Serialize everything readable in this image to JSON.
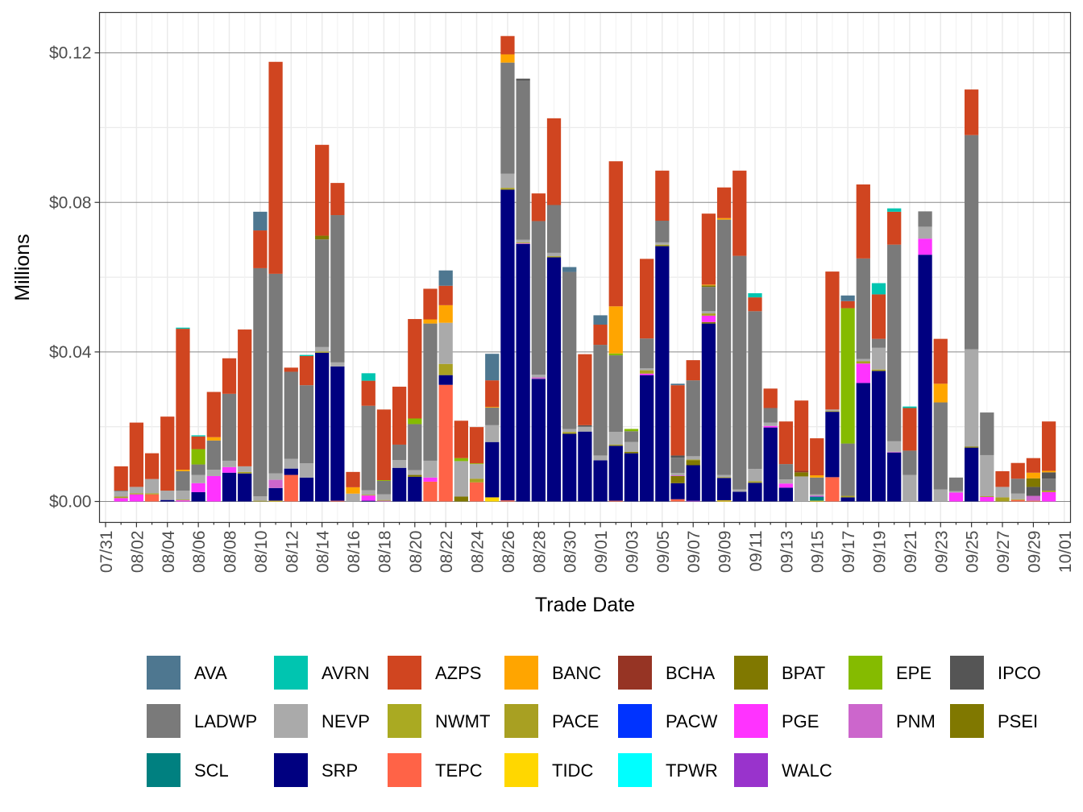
{
  "chart_data": {
    "type": "bar",
    "stacked": true,
    "xlabel": "Trade Date",
    "ylabel": "Millions",
    "y_ticks": [
      "$0.00",
      "$0.04",
      "$0.08",
      "$0.12"
    ],
    "y_tick_values": [
      0,
      0.04,
      0.08,
      0.12
    ],
    "ylim": [
      -0.0056,
      0.1308
    ],
    "x_ticks": [
      "07/31",
      "08/02",
      "08/04",
      "08/06",
      "08/08",
      "08/10",
      "08/12",
      "08/14",
      "08/16",
      "08/18",
      "08/20",
      "08/22",
      "08/24",
      "08/26",
      "08/28",
      "08/30",
      "09/01",
      "09/03",
      "09/05",
      "09/07",
      "09/09",
      "09/11",
      "09/13",
      "09/15",
      "09/17",
      "09/19",
      "09/21",
      "09/23",
      "09/25",
      "09/27",
      "09/29",
      "10/01"
    ],
    "x_range": [
      "07/31",
      "10/01"
    ],
    "grid": true,
    "legend_position": "bottom",
    "series": [
      {
        "name": "AVA",
        "color": "#4E7790"
      },
      {
        "name": "AVRN",
        "color": "#00C5B0"
      },
      {
        "name": "AZPS",
        "color": "#D04520"
      },
      {
        "name": "BANC",
        "color": "#FFA500"
      },
      {
        "name": "BCHA",
        "color": "#963424"
      },
      {
        "name": "BPAT",
        "color": "#807800"
      },
      {
        "name": "EPE",
        "color": "#85BB00"
      },
      {
        "name": "IPCO",
        "color": "#555555"
      },
      {
        "name": "LADWP",
        "color": "#7A7A7A"
      },
      {
        "name": "NEVP",
        "color": "#AAAAAA"
      },
      {
        "name": "NWMT",
        "color": "#AAAA22"
      },
      {
        "name": "PACE",
        "color": "#A8A022"
      },
      {
        "name": "PACW",
        "color": "#0033FF"
      },
      {
        "name": "PGE",
        "color": "#FF33FF"
      },
      {
        "name": "PNM",
        "color": "#CC66CC"
      },
      {
        "name": "PSEI",
        "color": "#807800"
      },
      {
        "name": "SCL",
        "color": "#008080"
      },
      {
        "name": "SRP",
        "color": "#000080"
      },
      {
        "name": "TEPC",
        "color": "#FF6347"
      },
      {
        "name": "TIDC",
        "color": "#FFD700"
      },
      {
        "name": "TPWR",
        "color": "#00FFFF"
      },
      {
        "name": "WALC",
        "color": "#9933CC"
      }
    ],
    "days": [
      {
        "date": "08/01",
        "values": {
          "PGE": 0.0009,
          "PACE": 0.0004,
          "NEVP": 0.0014,
          "LADWP": 0.0002,
          "AZPS": 0.0065
        }
      },
      {
        "date": "08/02",
        "values": {
          "PGE": 0.0019,
          "PACE": 0.0003,
          "NEVP": 0.0017,
          "AZPS": 0.0172
        }
      },
      {
        "date": "08/03",
        "values": {
          "TEPC": 0.0019,
          "PACE": 0.0003,
          "NEVP": 0.0038,
          "AZPS": 0.0069
        }
      },
      {
        "date": "08/04",
        "values": {
          "SRP": 0.0004,
          "NEVP": 0.0025,
          "AZPS": 0.0198
        }
      },
      {
        "date": "08/05",
        "values": {
          "PGE": 0.0003,
          "PACE": 0.0002,
          "NEVP": 0.0024,
          "LADWP": 0.0052,
          "BANC": 0.0004,
          "AZPS": 0.0377,
          "AVRN": 0.0003
        }
      },
      {
        "date": "08/06",
        "values": {
          "SRP": 0.0025,
          "PGE": 0.0024,
          "NEVP": 0.0022,
          "LADWP": 0.0028,
          "EPE": 0.0041,
          "AZPS": 0.0034,
          "AVRN": 0.0003
        }
      },
      {
        "date": "08/07",
        "values": {
          "PGE": 0.0068,
          "NEVP": 0.0017,
          "LADWP": 0.0078,
          "BANC": 0.0009,
          "AZPS": 0.0121
        }
      },
      {
        "date": "08/08",
        "values": {
          "SRP": 0.0077,
          "PGE": 0.0015,
          "NEVP": 0.0017,
          "LADWP": 0.0179,
          "AZPS": 0.0095
        }
      },
      {
        "date": "08/09",
        "values": {
          "SRP": 0.0075,
          "PACE": 0.0004,
          "NEVP": 0.0015,
          "AZPS": 0.0366
        }
      },
      {
        "date": "08/10",
        "values": {
          "PACE": 0.0002,
          "NEVP": 0.0012,
          "LADWP": 0.061,
          "AZPS": 0.0101,
          "AVA": 0.005
        }
      },
      {
        "date": "08/11",
        "values": {
          "TIDC": 0.0002,
          "SRP": 0.0034,
          "PNM": 0.0022,
          "NEVP": 0.0017,
          "LADWP": 0.0534,
          "AZPS": 0.0567
        }
      },
      {
        "date": "08/12",
        "values": {
          "TEPC": 0.0071,
          "SRP": 0.0017,
          "NEVP": 0.0026,
          "LADWP": 0.0233,
          "AZPS": 0.0011
        }
      },
      {
        "date": "08/13",
        "values": {
          "SRP": 0.0064,
          "NEVP": 0.0038,
          "LADWP": 0.0209,
          "AZPS": 0.0078,
          "AVRN": 0.0003
        }
      },
      {
        "date": "08/14",
        "values": {
          "SRP": 0.0398,
          "PACE": 0.0003,
          "NEVP": 0.0012,
          "LADWP": 0.0288,
          "BPAT": 0.001,
          "AZPS": 0.0243
        }
      },
      {
        "date": "08/15",
        "values": {
          "TEPC": 0.0002,
          "SRP": 0.0359,
          "NEVP": 0.0011,
          "LADWP": 0.0394,
          "AZPS": 0.0086
        }
      },
      {
        "date": "08/16",
        "values": {
          "NEVP": 0.0021,
          "BANC": 0.0017,
          "AZPS": 0.0041
        }
      },
      {
        "date": "08/17",
        "values": {
          "SRP": 0.0002,
          "PGE": 0.0014,
          "PACE": 0.0002,
          "NEVP": 0.0012,
          "LADWP": 0.0226,
          "AZPS": 0.0067,
          "AVRN": 0.002
        }
      },
      {
        "date": "08/18",
        "values": {
          "PNM": 0.0002,
          "PACE": 0.0002,
          "NEVP": 0.0015,
          "LADWP": 0.0036,
          "EPE": 0.0002,
          "AZPS": 0.0189
        }
      },
      {
        "date": "08/19",
        "values": {
          "SRP": 0.009,
          "NEVP": 0.0021,
          "LADWP": 0.0041,
          "AZPS": 0.0155
        }
      },
      {
        "date": "08/20",
        "values": {
          "SRP": 0.0066,
          "PSEI": 0.0005,
          "NEVP": 0.0013,
          "LADWP": 0.0123,
          "EPE": 0.0015,
          "AZPS": 0.0266
        }
      },
      {
        "date": "08/21",
        "values": {
          "TEPC": 0.0053,
          "PGE": 0.0011,
          "NEVP": 0.0045,
          "LADWP": 0.0367,
          "BANC": 0.0011,
          "AZPS": 0.0082
        }
      },
      {
        "date": "08/22",
        "values": {
          "TEPC": 0.0312,
          "SRP": 0.0026,
          "PACE": 0.003,
          "NEVP": 0.011,
          "BANC": 0.0047,
          "AZPS": 0.0052,
          "AVA": 0.0041
        }
      },
      {
        "date": "08/23",
        "values": {
          "PSEI": 0.0013,
          "NEVP": 0.0095,
          "EPE": 0.0008,
          "AZPS": 0.01
        }
      },
      {
        "date": "08/24",
        "values": {
          "TEPC": 0.0051,
          "PACE": 0.001,
          "NEVP": 0.0039,
          "EPE": 0.0002,
          "AZPS": 0.0097
        }
      },
      {
        "date": "08/25",
        "values": {
          "TIDC": 0.0011,
          "SRP": 0.0148,
          "NEVP": 0.0045,
          "LADWP": 0.0047,
          "BANC": 0.0002,
          "AZPS": 0.0071,
          "AVA": 0.0071
        }
      },
      {
        "date": "08/26",
        "values": {
          "TEPC": 0.0003,
          "SRP": 0.0831,
          "PACE": 0.0005,
          "NEVP": 0.0038,
          "LADWP": 0.0297,
          "BANC": 0.0022,
          "AZPS": 0.0049
        }
      },
      {
        "date": "08/27",
        "values": {
          "SRP": 0.0689,
          "PNM": 0.0002,
          "PACE": 0.0002,
          "NEVP": 0.0007,
          "LADWP": 0.0426,
          "IPCO": 0.0005
        }
      },
      {
        "date": "08/28",
        "values": {
          "SRP": 0.0328,
          "PNM": 0.0004,
          "NEVP": 0.0007,
          "LADWP": 0.0411,
          "AZPS": 0.0074
        }
      },
      {
        "date": "08/29",
        "values": {
          "SRP": 0.0653,
          "PACE": 0.0003,
          "NEVP": 0.0009,
          "LADWP": 0.0128,
          "AZPS": 0.0232
        }
      },
      {
        "date": "08/30",
        "values": {
          "SRP": 0.0181,
          "PACE": 0.0005,
          "NEVP": 0.0008,
          "LADWP": 0.042,
          "AVA": 0.0013
        }
      },
      {
        "date": "08/31",
        "values": {
          "SRP": 0.0187,
          "NEVP": 0.0013,
          "IPCO": 0.0004,
          "AZPS": 0.019
        }
      },
      {
        "date": "09/01",
        "values": {
          "SRP": 0.011,
          "NEVP": 0.0013,
          "LADWP": 0.0296,
          "AZPS": 0.0054,
          "AVA": 0.0025
        }
      },
      {
        "date": "09/02",
        "values": {
          "TEPC": 0.0002,
          "SRP": 0.0147,
          "PACE": 0.0003,
          "NEVP": 0.0034,
          "LADWP": 0.0205,
          "EPE": 0.0005,
          "BANC": 0.0126,
          "AZPS": 0.0388
        }
      },
      {
        "date": "09/03",
        "values": {
          "SRP": 0.0129,
          "PSEI": 0.0004,
          "NEVP": 0.0026,
          "LADWP": 0.0029,
          "EPE": 0.0006
        }
      },
      {
        "date": "09/04",
        "values": {
          "SRP": 0.0338,
          "PGE": 0.0004,
          "PACE": 0.0009,
          "NEVP": 0.0005,
          "LADWP": 0.008,
          "AZPS": 0.0213
        }
      },
      {
        "date": "09/05",
        "values": {
          "SRP": 0.0683,
          "PACE": 0.0004,
          "NEVP": 0.0006,
          "LADWP": 0.0058,
          "AZPS": 0.0134
        }
      },
      {
        "date": "09/06",
        "values": {
          "TEPC": 0.0006,
          "SRP": 0.0043,
          "PSEI": 0.0019,
          "PNM": 0.0002,
          "NEVP": 0.0006,
          "LADWP": 0.0041,
          "IPCO": 0.0006,
          "AZPS": 0.0188,
          "AVA": 0.0004
        }
      },
      {
        "date": "09/07",
        "values": {
          "WALC": 0.0002,
          "SRP": 0.0095,
          "PSEI": 0.0013,
          "PACE": 0.0002,
          "NEVP": 0.0009,
          "LADWP": 0.0203,
          "AZPS": 0.0054
        }
      },
      {
        "date": "09/08",
        "values": {
          "SRP": 0.0476,
          "PSEI": 0.0004,
          "PGE": 0.0017,
          "PACE": 0.0006,
          "NEVP": 0.0006,
          "LADWP": 0.0065,
          "BPAT": 0.0004,
          "BANC": 0.0002,
          "AZPS": 0.019
        }
      },
      {
        "date": "09/09",
        "values": {
          "TIDC": 0.0003,
          "SRP": 0.006,
          "PACE": 0.0002,
          "NEVP": 0.0006,
          "LADWP": 0.0683,
          "BANC": 0.0004,
          "AZPS": 0.0082
        }
      },
      {
        "date": "09/10",
        "values": {
          "SRP": 0.0026,
          "NEVP": 0.0006,
          "LADWP": 0.0625,
          "AZPS": 0.0228
        }
      },
      {
        "date": "09/11",
        "values": {
          "SRP": 0.005,
          "PACE": 0.0004,
          "NEVP": 0.0033,
          "LADWP": 0.0422,
          "AZPS": 0.0037,
          "AVRN": 0.0011
        }
      },
      {
        "date": "09/12",
        "values": {
          "SRP": 0.0198,
          "PGE": 0.0004,
          "NEVP": 0.0009,
          "LADWP": 0.0039,
          "AZPS": 0.0052
        }
      },
      {
        "date": "09/13",
        "values": {
          "SRP": 0.0037,
          "PGE": 0.0011,
          "NEVP": 0.0011,
          "LADWP": 0.0041,
          "AZPS": 0.0114
        }
      },
      {
        "date": "09/14",
        "values": {
          "NEVP": 0.0067,
          "BPAT": 0.0011,
          "BCHA": 0.0004,
          "AZPS": 0.0188
        }
      },
      {
        "date": "09/15",
        "values": {
          "TIDC": 0.0002,
          "SCL": 0.0011,
          "PGE": 0.0002,
          "NEVP": 0.0004,
          "LADWP": 0.0045,
          "BANC": 0.0006,
          "AZPS": 0.0099
        }
      },
      {
        "date": "09/16",
        "values": {
          "TEPC": 0.0065,
          "SRP": 0.0175,
          "PACE": 0.0002,
          "NEVP": 0.0004,
          "AZPS": 0.0369
        }
      },
      {
        "date": "09/17",
        "values": {
          "SRP": 0.0011,
          "PACE": 0.0004,
          "LADWP": 0.014,
          "EPE": 0.0362,
          "AZPS": 0.0019,
          "AVA": 0.0015
        }
      },
      {
        "date": "09/18",
        "values": {
          "SRP": 0.0317,
          "PGE": 0.0052,
          "PACE": 0.0006,
          "NEVP": 0.0006,
          "LADWP": 0.0269,
          "AZPS": 0.0198
        }
      },
      {
        "date": "09/19",
        "values": {
          "SRP": 0.0349,
          "PACE": 0.0004,
          "NEVP": 0.0058,
          "LADWP": 0.0024,
          "AZPS": 0.0119,
          "AVRN": 0.003
        }
      },
      {
        "date": "09/20",
        "values": {
          "SRP": 0.0131,
          "PNM": 0.0002,
          "NEVP": 0.0028,
          "LADWP": 0.0526,
          "AZPS": 0.0088,
          "AVRN": 0.0009
        }
      },
      {
        "date": "09/21",
        "values": {
          "NEVP": 0.0071,
          "LADWP": 0.0065,
          "AZPS": 0.0114,
          "AVRN": 0.0004
        }
      },
      {
        "date": "09/22",
        "values": {
          "SRP": 0.066,
          "PGE": 0.0043,
          "NEVP": 0.0032,
          "LADWP": 0.0041
        }
      },
      {
        "date": "09/23",
        "values": {
          "NEVP": 0.0032,
          "LADWP": 0.0233,
          "BANC": 0.005,
          "AZPS": 0.012
        }
      },
      {
        "date": "09/24",
        "values": {
          "PGE": 0.0024,
          "NEVP": 0.0004,
          "LADWP": 0.0036
        }
      },
      {
        "date": "09/25",
        "values": {
          "SRP": 0.0144,
          "PSEI": 0.0003,
          "NEVP": 0.026,
          "LADWP": 0.0573,
          "AZPS": 0.0122
        }
      },
      {
        "date": "09/26",
        "values": {
          "PGE": 0.0012,
          "PACE": 0.0002,
          "NEVP": 0.011,
          "LADWP": 0.0114
        }
      },
      {
        "date": "09/27",
        "values": {
          "PACE": 0.0011,
          "NEVP": 0.0028,
          "AZPS": 0.0042
        }
      },
      {
        "date": "09/28",
        "values": {
          "TEPC": 0.0004,
          "PACE": 0.0002,
          "NEVP": 0.0015,
          "LADWP": 0.004,
          "AZPS": 0.0042
        }
      },
      {
        "date": "09/29",
        "values": {
          "TEPC": 0.0002,
          "PNM": 0.0013,
          "IPCO": 0.0024,
          "BPAT": 0.0023,
          "BANC": 0.0015,
          "AZPS": 0.0039
        }
      },
      {
        "date": "09/30",
        "values": {
          "PGE": 0.0025,
          "PACE": 0.0004,
          "LADWP": 0.0032,
          "IPCO": 0.0017,
          "BANC": 0.0004,
          "AZPS": 0.0132
        }
      }
    ]
  }
}
